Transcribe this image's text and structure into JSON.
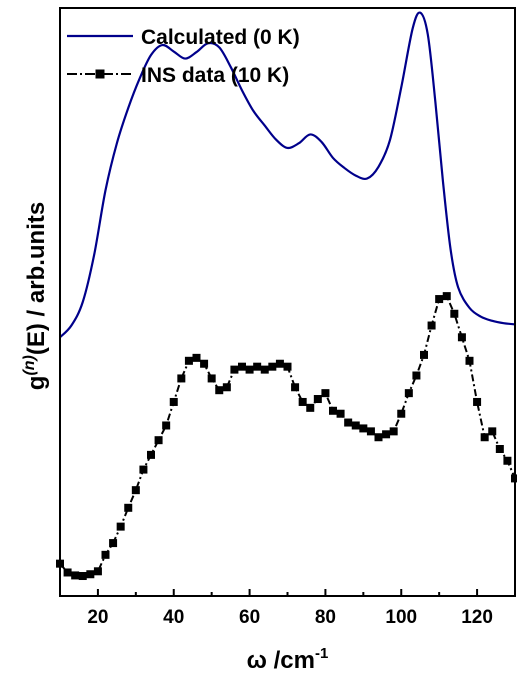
{
  "colors": {
    "calculated": "#00008B",
    "ins": "#000000",
    "axis": "#000000"
  },
  "chart_data": {
    "type": "line",
    "xlabel": "ω /cm",
    "xlabel_sup": "-1",
    "ylabel_pre": "g",
    "ylabel_sup": "(n)",
    "ylabel_post": "(E) / arb.units",
    "xlim": [
      10,
      130
    ],
    "ylim": [
      0,
      1
    ],
    "xticks": [
      20,
      40,
      60,
      80,
      100,
      120
    ],
    "xtick_labels": [
      "20",
      "40",
      "60",
      "80",
      "100",
      "120"
    ],
    "y_tick_labels_shown": false,
    "grid": false,
    "legend_position": "top-left",
    "series": [
      {
        "name": "Calculated (0 K)",
        "style": "line",
        "x": [
          10,
          13,
          16,
          19,
          22,
          25,
          28,
          31,
          34,
          37,
          40,
          43,
          46,
          49,
          52,
          55,
          58,
          61,
          64,
          67,
          70,
          73,
          76,
          79,
          82,
          85,
          88,
          91,
          94,
          97,
          100,
          103,
          105,
          107,
          109,
          111,
          113,
          115,
          118,
          121,
          124,
          127,
          130
        ],
        "y": [
          0.44,
          0.46,
          0.5,
          0.58,
          0.69,
          0.77,
          0.83,
          0.88,
          0.92,
          0.937,
          0.926,
          0.914,
          0.925,
          0.94,
          0.933,
          0.9,
          0.86,
          0.825,
          0.8,
          0.776,
          0.762,
          0.77,
          0.785,
          0.772,
          0.745,
          0.728,
          0.715,
          0.71,
          0.73,
          0.775,
          0.865,
          0.965,
          0.992,
          0.955,
          0.84,
          0.705,
          0.59,
          0.525,
          0.49,
          0.475,
          0.468,
          0.464,
          0.462
        ]
      },
      {
        "name": "INS data (10 K)",
        "style": "line-marker",
        "x": [
          10,
          12,
          14,
          16,
          18,
          20,
          22,
          24,
          26,
          28,
          30,
          32,
          34,
          36,
          38,
          40,
          42,
          44,
          46,
          48,
          50,
          52,
          54,
          56,
          58,
          60,
          62,
          64,
          66,
          68,
          70,
          72,
          74,
          76,
          78,
          80,
          82,
          84,
          86,
          88,
          90,
          92,
          94,
          96,
          98,
          100,
          102,
          104,
          106,
          108,
          110,
          112,
          114,
          116,
          118,
          120,
          122,
          124,
          126,
          128,
          130
        ],
        "y": [
          0.055,
          0.04,
          0.035,
          0.034,
          0.037,
          0.042,
          0.07,
          0.09,
          0.118,
          0.15,
          0.18,
          0.215,
          0.24,
          0.265,
          0.29,
          0.33,
          0.37,
          0.4,
          0.405,
          0.395,
          0.37,
          0.35,
          0.355,
          0.385,
          0.39,
          0.385,
          0.39,
          0.385,
          0.39,
          0.395,
          0.39,
          0.355,
          0.33,
          0.32,
          0.335,
          0.345,
          0.315,
          0.31,
          0.295,
          0.29,
          0.285,
          0.28,
          0.27,
          0.275,
          0.28,
          0.31,
          0.345,
          0.375,
          0.41,
          0.46,
          0.505,
          0.51,
          0.48,
          0.44,
          0.4,
          0.33,
          0.27,
          0.28,
          0.25,
          0.23,
          0.2
        ]
      }
    ]
  }
}
